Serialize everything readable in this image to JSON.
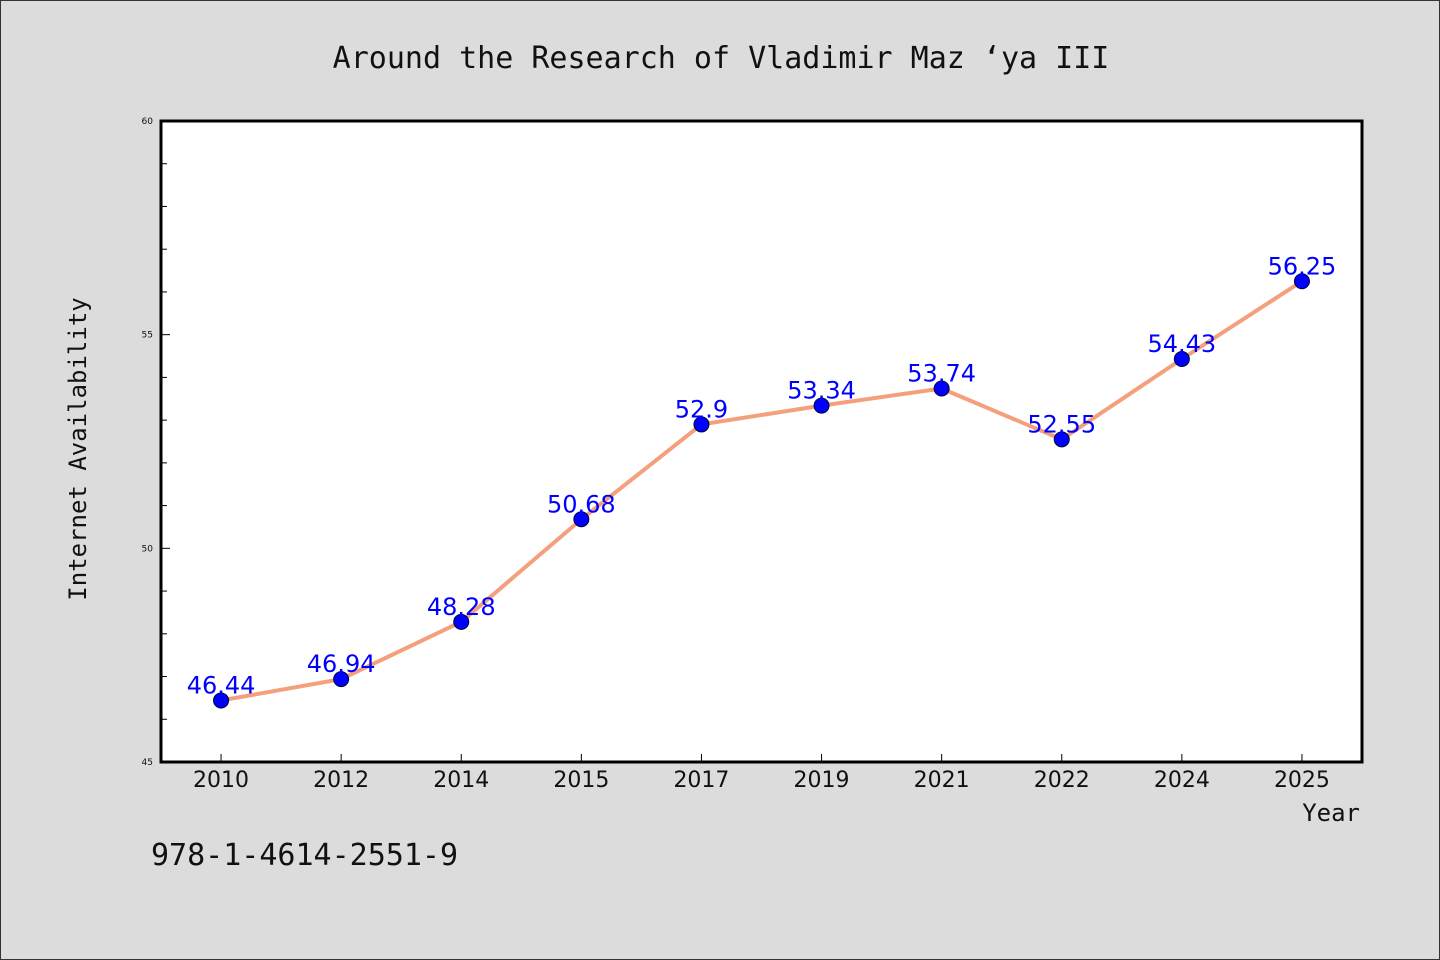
{
  "chart_data": {
    "type": "line",
    "title": "Around the Research of Vladimir Maz ‘ya III",
    "xlabel": "Year",
    "ylabel": "Internet Availability",
    "categories": [
      "2010",
      "2012",
      "2014",
      "2015",
      "2017",
      "2019",
      "2021",
      "2022",
      "2024",
      "2025"
    ],
    "series": [
      {
        "values": [
          46.44,
          46.94,
          48.28,
          50.68,
          52.9,
          53.34,
          53.74,
          52.55,
          54.43,
          56.25
        ],
        "labels": [
          "46.44",
          "46.94",
          "48.28",
          "50.68",
          "52.9",
          "53.34",
          "53.74",
          "52.55",
          "54.43",
          "56.25"
        ]
      }
    ],
    "ylim": [
      45,
      60
    ],
    "yticks": [
      45,
      50,
      55,
      60
    ],
    "grid": false,
    "colors": {
      "line": "#f4a07c",
      "marker": "#0000ff",
      "label": "#0000ff",
      "background": "#dcdcdc",
      "plot_background": "#ffffff"
    }
  },
  "footer": {
    "isbn": "978-1-4614-2551-9"
  }
}
